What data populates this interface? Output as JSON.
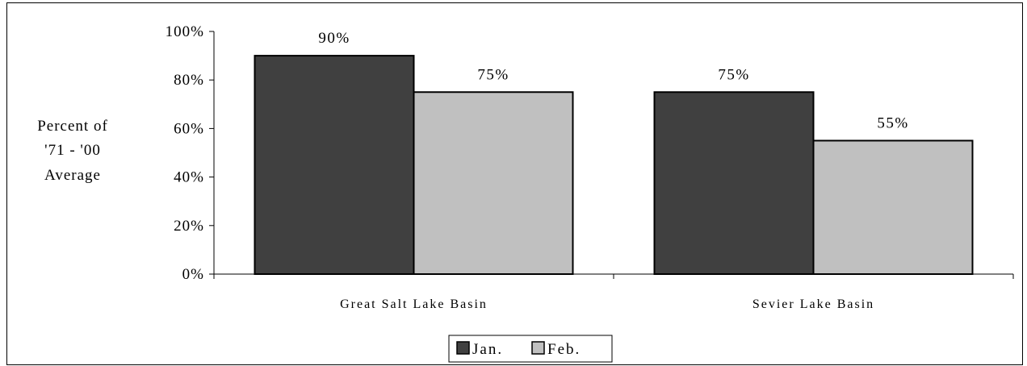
{
  "chart_data": {
    "type": "bar",
    "categories": [
      "Great Salt Lake Basin",
      "Sevier Lake Basin"
    ],
    "series": [
      {
        "name": "Jan.",
        "values": [
          90,
          75
        ],
        "labels": [
          "90%",
          "75%"
        ],
        "color": "#404040"
      },
      {
        "name": "Feb.",
        "values": [
          75,
          55
        ],
        "labels": [
          "75%",
          "55%"
        ],
        "color": "#c0c0c0"
      }
    ],
    "ylabel": [
      "Percent of",
      "'71 - '00",
      "Average"
    ],
    "ylim": [
      0,
      100
    ],
    "yticks": [
      0,
      20,
      40,
      60,
      80,
      100
    ],
    "ytick_labels": [
      "0%",
      "20%",
      "40%",
      "60%",
      "80%",
      "100%"
    ],
    "grid": false,
    "legend": "bottom-center"
  }
}
